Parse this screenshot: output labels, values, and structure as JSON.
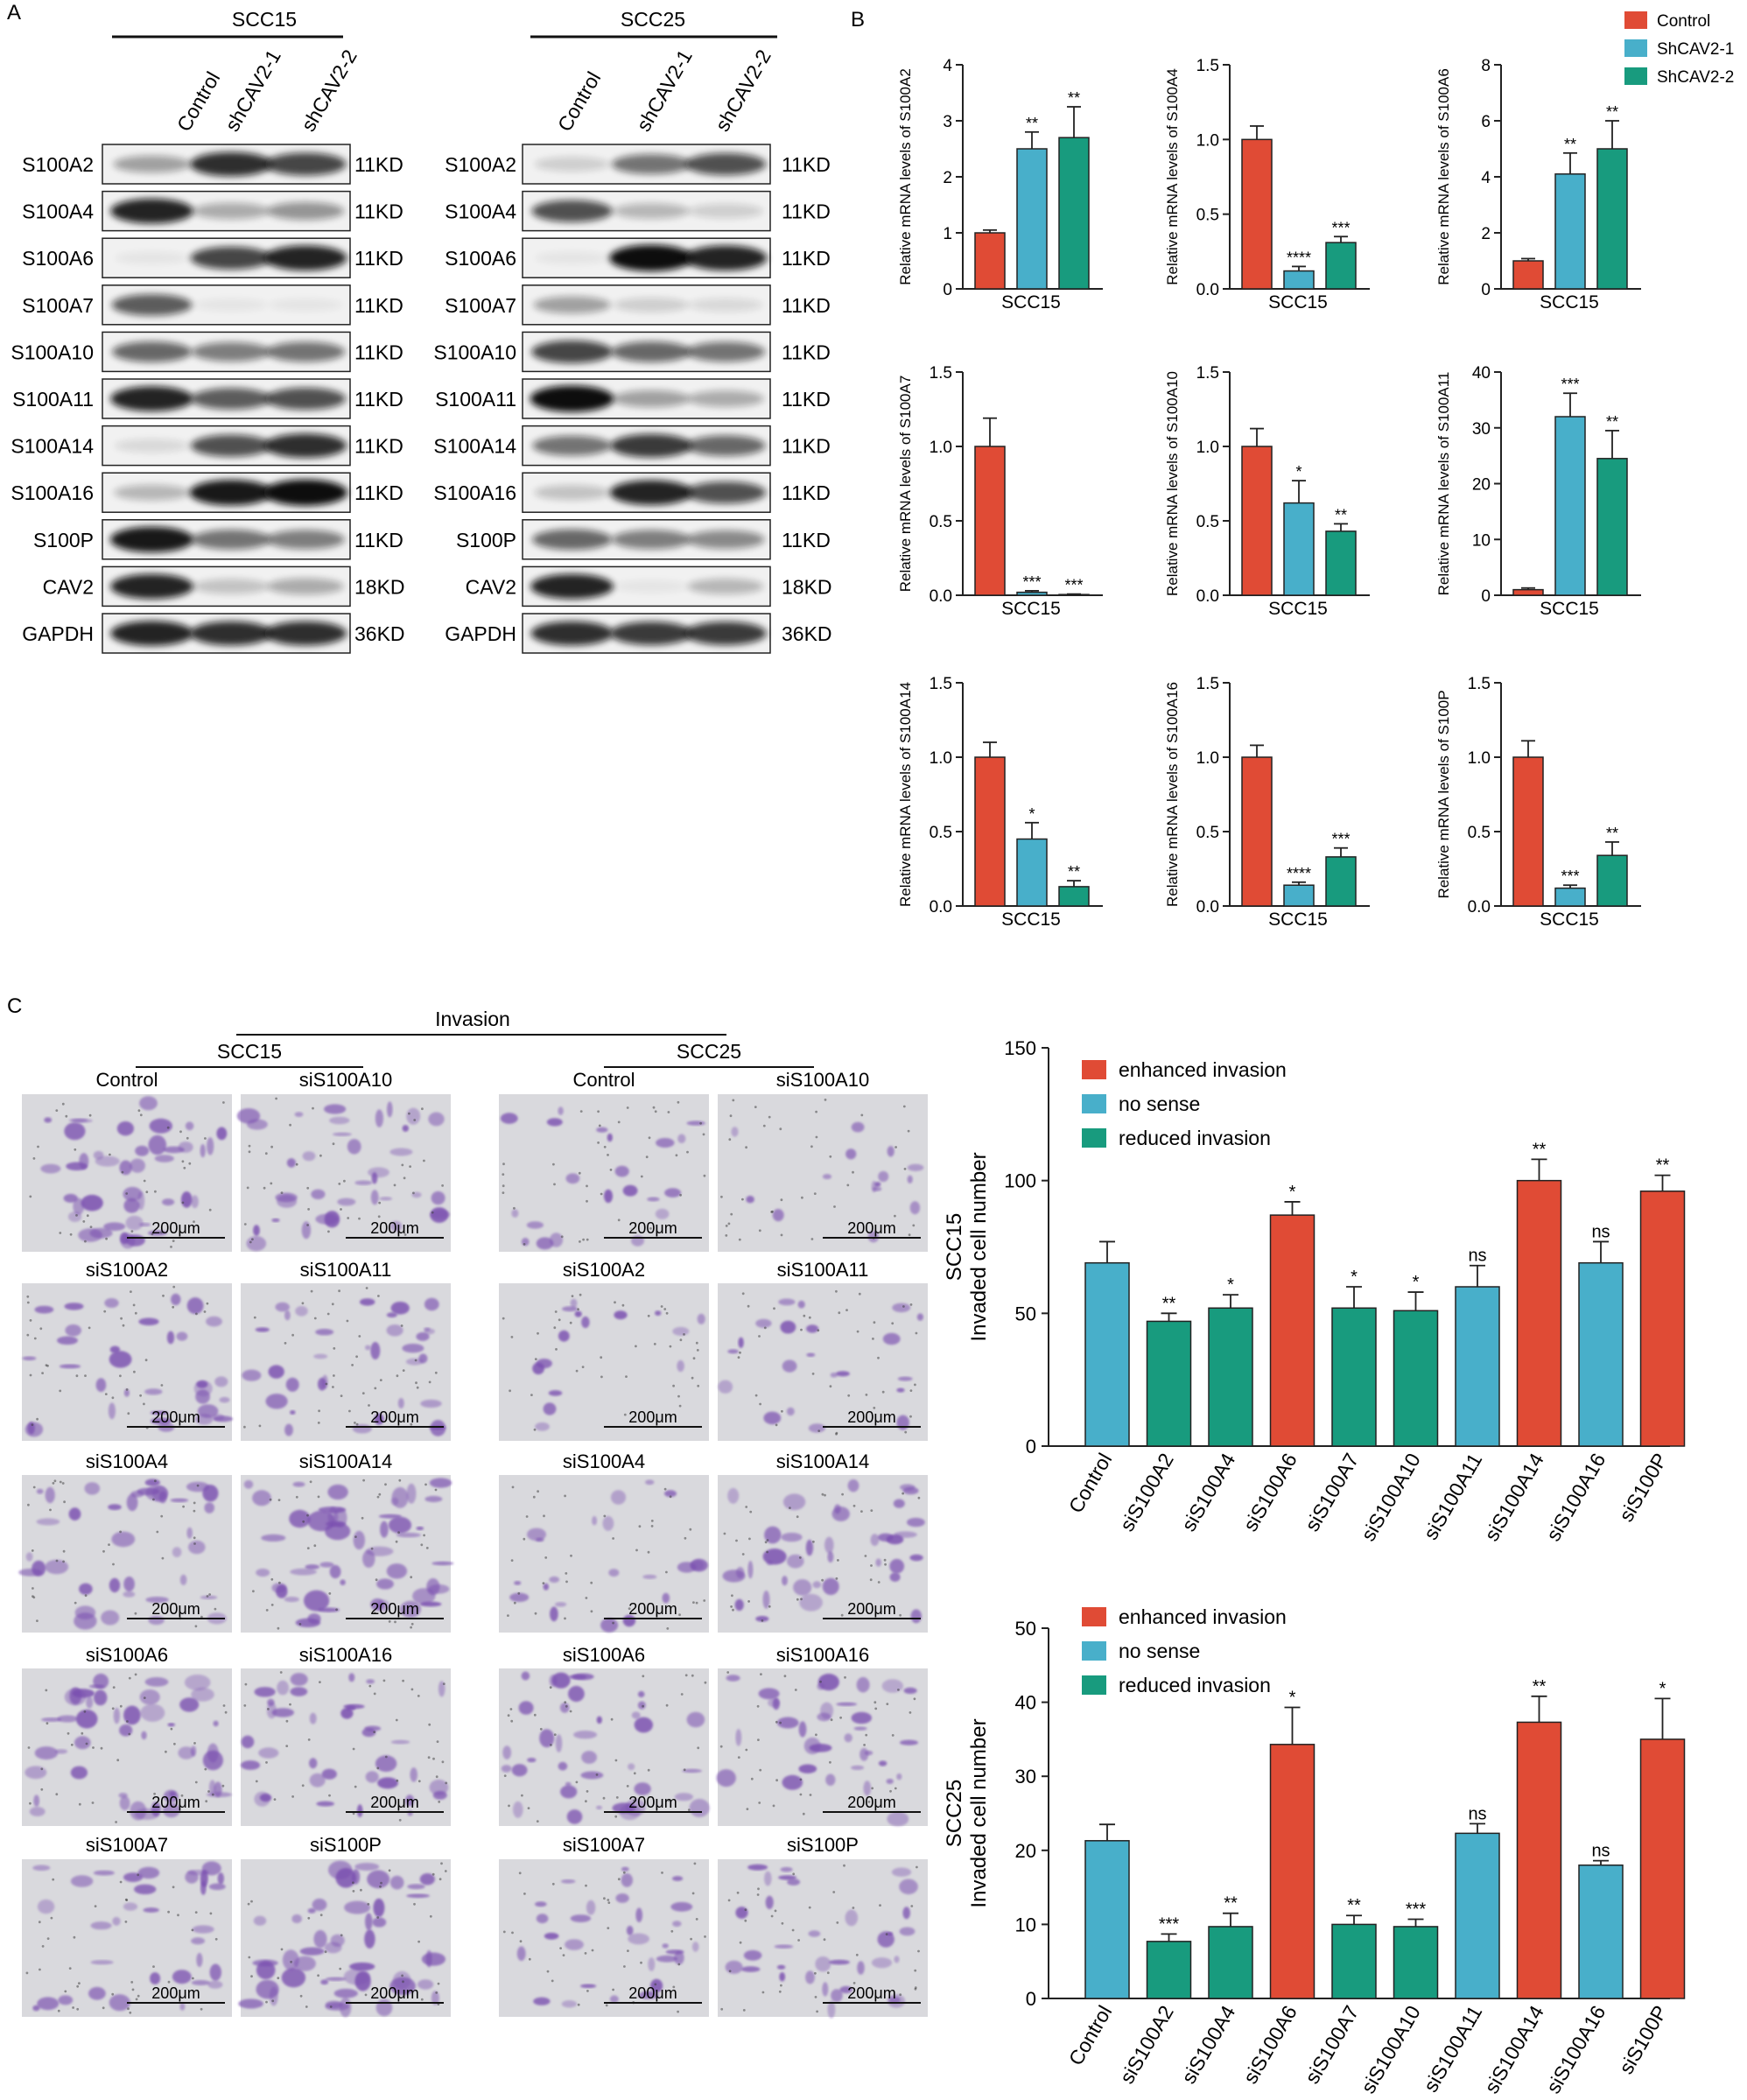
{
  "panel_labels": {
    "a": "A",
    "b": "B",
    "c": "C"
  },
  "colors": {
    "control": "#e04b35",
    "sh1": "#48afca",
    "sh2": "#189b7e",
    "blot_dark": "#101010",
    "stain": "#7a4fb0"
  },
  "panel_a": {
    "cell_lines": [
      "SCC15",
      "SCC25"
    ],
    "lanes": [
      "Control",
      "shCAV2-1",
      "shCAV2-2"
    ],
    "rows": [
      {
        "protein": "S100A2",
        "size": "11KD"
      },
      {
        "protein": "S100A4",
        "size": "11KD"
      },
      {
        "protein": "S100A6",
        "size": "11KD"
      },
      {
        "protein": "S100A7",
        "size": "11KD"
      },
      {
        "protein": "S100A10",
        "size": "11KD"
      },
      {
        "protein": "S100A11",
        "size": "11KD"
      },
      {
        "protein": "S100A14",
        "size": "11KD"
      },
      {
        "protein": "S100A16",
        "size": "11KD"
      },
      {
        "protein": "S100P",
        "size": "11KD"
      },
      {
        "protein": "CAV2",
        "size": "18KD"
      },
      {
        "protein": "GAPDH",
        "size": "36KD"
      }
    ],
    "band_intensity": {
      "SCC15": [
        [
          0.35,
          0.85,
          0.75
        ],
        [
          0.9,
          0.3,
          0.4
        ],
        [
          0.05,
          0.75,
          0.9
        ],
        [
          0.65,
          0.05,
          0.05
        ],
        [
          0.6,
          0.5,
          0.55
        ],
        [
          0.9,
          0.65,
          0.7
        ],
        [
          0.1,
          0.7,
          0.85
        ],
        [
          0.25,
          0.95,
          1.0
        ],
        [
          0.95,
          0.55,
          0.5
        ],
        [
          0.9,
          0.2,
          0.3
        ],
        [
          0.9,
          0.85,
          0.85
        ]
      ],
      "SCC25": [
        [
          0.15,
          0.55,
          0.7
        ],
        [
          0.7,
          0.25,
          0.15
        ],
        [
          0.05,
          1.0,
          0.9
        ],
        [
          0.35,
          0.15,
          0.1
        ],
        [
          0.75,
          0.6,
          0.55
        ],
        [
          1.0,
          0.35,
          0.3
        ],
        [
          0.55,
          0.8,
          0.6
        ],
        [
          0.2,
          0.9,
          0.7
        ],
        [
          0.6,
          0.5,
          0.45
        ],
        [
          0.9,
          0.05,
          0.25
        ],
        [
          0.85,
          0.8,
          0.8
        ]
      ]
    }
  },
  "panel_b": {
    "legend": [
      "Control",
      "ShCAV2-1",
      "ShCAV2-2"
    ],
    "xlabel": "SCC15",
    "chart_data": [
      {
        "type": "bar",
        "ylabel": "Relative mRNA levels of S100A2",
        "ylim": [
          0,
          4
        ],
        "yticks": [
          "0",
          "1",
          "2",
          "3",
          "4"
        ],
        "categories": [
          "Control",
          "ShCAV2-1",
          "ShCAV2-2"
        ],
        "values": [
          1.0,
          2.5,
          2.7
        ],
        "errors": [
          0.05,
          0.3,
          0.55
        ],
        "sig": [
          "",
          "**",
          "**"
        ]
      },
      {
        "type": "bar",
        "ylabel": "Relative mRNA levels of S100A4",
        "ylim": [
          0,
          1.5
        ],
        "yticks": [
          "0.0",
          "0.5",
          "1.0",
          "1.5"
        ],
        "categories": [
          "Control",
          "ShCAV2-1",
          "ShCAV2-2"
        ],
        "values": [
          1.0,
          0.12,
          0.31
        ],
        "errors": [
          0.09,
          0.03,
          0.04
        ],
        "sig": [
          "",
          "****",
          "***"
        ]
      },
      {
        "type": "bar",
        "ylabel": "Relative mRNA levels of S100A6",
        "ylim": [
          0,
          8
        ],
        "yticks": [
          "0",
          "2",
          "4",
          "6",
          "8"
        ],
        "categories": [
          "Control",
          "ShCAV2-1",
          "ShCAV2-2"
        ],
        "values": [
          1.0,
          4.1,
          5.0
        ],
        "errors": [
          0.08,
          0.75,
          1.0
        ],
        "sig": [
          "",
          "**",
          "**"
        ]
      },
      {
        "type": "bar",
        "ylabel": "Relative mRNA levels of S100A7",
        "ylim": [
          0,
          1.5
        ],
        "yticks": [
          "0.0",
          "0.5",
          "1.0",
          "1.5"
        ],
        "categories": [
          "Control",
          "ShCAV2-1",
          "ShCAV2-2"
        ],
        "values": [
          1.0,
          0.02,
          0.005
        ],
        "errors": [
          0.19,
          0.01,
          0.003
        ],
        "sig": [
          "",
          "***",
          "***"
        ]
      },
      {
        "type": "bar",
        "ylabel": "Relative mRNA levels of S100A10",
        "ylim": [
          0,
          1.5
        ],
        "yticks": [
          "0.0",
          "0.5",
          "1.0",
          "1.5"
        ],
        "categories": [
          "Control",
          "ShCAV2-1",
          "ShCAV2-2"
        ],
        "values": [
          1.0,
          0.62,
          0.43
        ],
        "errors": [
          0.12,
          0.15,
          0.05
        ],
        "sig": [
          "",
          "*",
          "**"
        ]
      },
      {
        "type": "bar",
        "ylabel": "Relative mRNA levels of S100A11",
        "ylim": [
          0,
          40
        ],
        "yticks": [
          "0",
          "10",
          "20",
          "30",
          "40"
        ],
        "categories": [
          "Control",
          "ShCAV2-1",
          "ShCAV2-2"
        ],
        "values": [
          1.0,
          32.0,
          24.5
        ],
        "errors": [
          0.3,
          4.2,
          5.0
        ],
        "sig": [
          "",
          "***",
          "**"
        ]
      },
      {
        "type": "bar",
        "ylabel": "Relative mRNA levels of S100A14",
        "ylim": [
          0,
          1.5
        ],
        "yticks": [
          "0.0",
          "0.5",
          "1.0",
          "1.5"
        ],
        "categories": [
          "Control",
          "ShCAV2-1",
          "ShCAV2-2"
        ],
        "values": [
          1.0,
          0.45,
          0.13
        ],
        "errors": [
          0.1,
          0.11,
          0.04
        ],
        "sig": [
          "",
          "*",
          "**"
        ]
      },
      {
        "type": "bar",
        "ylabel": "Relative mRNA levels of S100A16",
        "ylim": [
          0,
          1.5
        ],
        "yticks": [
          "0.0",
          "0.5",
          "1.0",
          "1.5"
        ],
        "categories": [
          "Control",
          "ShCAV2-1",
          "ShCAV2-2"
        ],
        "values": [
          1.0,
          0.14,
          0.33
        ],
        "errors": [
          0.08,
          0.02,
          0.06
        ],
        "sig": [
          "",
          "****",
          "***"
        ]
      },
      {
        "type": "bar",
        "ylabel": "Relative mRNA levels of S100P",
        "ylim": [
          0,
          1.5
        ],
        "yticks": [
          "0.0",
          "0.5",
          "1.0",
          "1.5"
        ],
        "categories": [
          "Control",
          "ShCAV2-1",
          "ShCAV2-2"
        ],
        "values": [
          1.0,
          0.12,
          0.34
        ],
        "errors": [
          0.11,
          0.02,
          0.09
        ],
        "sig": [
          "",
          "***",
          "**"
        ]
      }
    ]
  },
  "panel_c": {
    "title": "Invasion",
    "groups": [
      "SCC15",
      "SCC25"
    ],
    "image_labels": [
      [
        "Control",
        "siS100A10"
      ],
      [
        "siS100A2",
        "siS100A11"
      ],
      [
        "siS100A4",
        "siS100A14"
      ],
      [
        "siS100A6",
        "siS100A16"
      ],
      [
        "siS100A7",
        "siS100P"
      ]
    ],
    "scale": "200μm",
    "stain_density": {
      "SCC15": [
        [
          0.7,
          0.55
        ],
        [
          0.5,
          0.5
        ],
        [
          0.6,
          0.85
        ],
        [
          0.75,
          0.55
        ],
        [
          0.5,
          0.8
        ]
      ],
      "SCC25": [
        [
          0.25,
          0.1
        ],
        [
          0.1,
          0.25
        ],
        [
          0.25,
          0.6
        ],
        [
          0.6,
          0.5
        ],
        [
          0.45,
          0.5
        ]
      ]
    },
    "legend": [
      "enhanced invasion",
      "no sense",
      "reduced invasion"
    ],
    "charts": [
      {
        "type": "bar",
        "line": "SCC15",
        "ylabel": "Invaded cell number",
        "ylim": [
          0,
          150
        ],
        "yticks": [
          "0",
          "50",
          "100",
          "150"
        ],
        "categories": [
          "Control",
          "siS100A2",
          "siS100A4",
          "siS100A6",
          "siS100A7",
          "siS100A10",
          "siS100A11",
          "siS100A14",
          "siS100A16",
          "siS100P"
        ],
        "values": [
          69,
          47,
          52,
          87,
          52,
          51,
          60,
          100,
          69,
          96
        ],
        "errors": [
          8,
          3,
          5,
          5,
          8,
          7,
          8,
          8,
          8,
          6
        ],
        "classes": [
          "none",
          "red",
          "red",
          "enh",
          "red",
          "red",
          "none",
          "enh",
          "none",
          "enh"
        ],
        "sig": [
          "",
          "**",
          "*",
          "*",
          "*",
          "*",
          "ns",
          "**",
          "ns",
          "**"
        ]
      },
      {
        "type": "bar",
        "line": "SCC25",
        "ylabel": "Invaded cell number",
        "ylim": [
          0,
          50
        ],
        "yticks": [
          "0",
          "10",
          "20",
          "30",
          "40",
          "50"
        ],
        "categories": [
          "Control",
          "siS100A2",
          "siS100A4",
          "siS100A6",
          "siS100A7",
          "siS100A10",
          "siS100A11",
          "siS100A14",
          "siS100A16",
          "siS100P"
        ],
        "values": [
          21.3,
          7.7,
          9.7,
          34.3,
          10.0,
          9.7,
          22.3,
          37.3,
          18.0,
          35.0
        ],
        "errors": [
          2.2,
          1.0,
          1.8,
          5.0,
          1.2,
          1.0,
          1.3,
          3.5,
          0.6,
          5.5
        ],
        "classes": [
          "none",
          "red",
          "red",
          "enh",
          "red",
          "red",
          "none",
          "enh",
          "none",
          "enh"
        ],
        "sig": [
          "",
          "***",
          "**",
          "*",
          "**",
          "***",
          "ns",
          "**",
          "ns",
          "*"
        ]
      }
    ]
  }
}
